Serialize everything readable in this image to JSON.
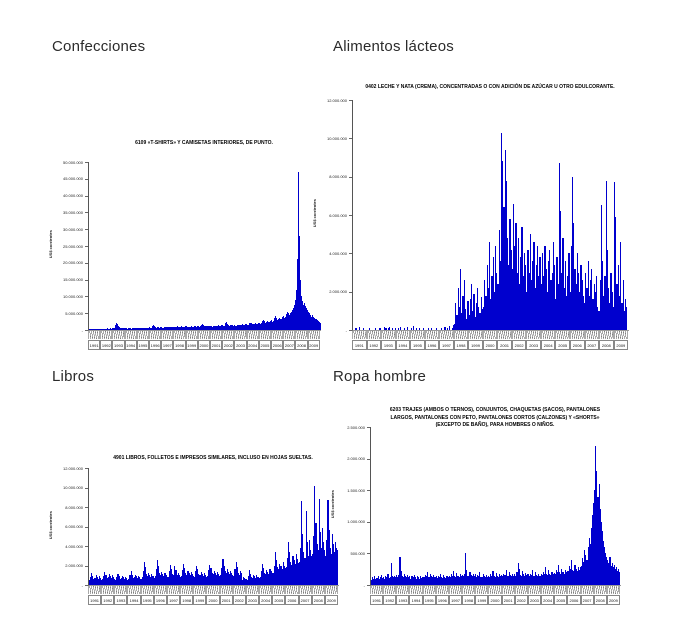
{
  "page": {
    "sections": [
      {
        "header": "Confecciones"
      },
      {
        "header": "Alimentos lácteos"
      },
      {
        "header": "Libros"
      },
      {
        "header": "Ropa hombre"
      }
    ]
  },
  "colors": {
    "bar": "#0000ce",
    "axis": "#888888",
    "header_text": "#2b2b2b"
  },
  "chart_data": [
    {
      "type": "bar",
      "section": "Confecciones",
      "title": "6109 «T-SHIRTS» Y CAMISETAS INTERIORES, DE PUNTO.",
      "ylabel": "US$ corrientes",
      "x_resolution": "monthly",
      "years": [
        "1991",
        "1992",
        "1993",
        "1994",
        "1995",
        "1996",
        "1997",
        "1998",
        "1999",
        "2000",
        "2001",
        "2002",
        "2003",
        "2004",
        "2005",
        "2006",
        "2007",
        "2008",
        "2009"
      ],
      "ytick_labels": [
        "50.000.000",
        "45.000.000",
        "40.000.000",
        "35.000.000",
        "30.000.000",
        "25.000.000",
        "20.000.000",
        "15.000.000",
        "10.000.000",
        "5.000.000",
        "-"
      ],
      "ylim_millions": [
        0,
        50
      ],
      "values_unit": "millions of current US$",
      "values_millions": [
        0.3,
        0.25,
        0.35,
        0.3,
        0.4,
        0.3,
        0.35,
        0.3,
        0.4,
        0.35,
        0.3,
        0.4,
        0.35,
        0.3,
        0.4,
        0.35,
        0.45,
        0.4,
        0.5,
        0.45,
        0.4,
        0.5,
        0.45,
        0.5,
        0.5,
        0.6,
        1.6,
        2.1,
        1.8,
        1.2,
        0.8,
        0.6,
        0.5,
        0.6,
        0.5,
        0.6,
        0.5,
        0.45,
        0.5,
        0.55,
        0.5,
        0.45,
        0.5,
        0.55,
        0.6,
        0.5,
        0.55,
        0.6,
        0.5,
        0.55,
        0.6,
        0.65,
        0.6,
        0.55,
        0.6,
        0.7,
        0.65,
        0.6,
        0.7,
        0.75,
        0.6,
        0.7,
        1.3,
        1.5,
        1.1,
        0.8,
        0.7,
        0.8,
        0.75,
        0.7,
        0.8,
        0.9,
        0.7,
        0.65,
        0.75,
        0.8,
        0.85,
        0.8,
        0.75,
        0.85,
        0.9,
        0.85,
        0.8,
        0.9,
        0.8,
        0.9,
        1,
        1.1,
        1,
        0.9,
        1,
        1.1,
        1,
        0.9,
        1,
        1.1,
        0.9,
        0.85,
        0.95,
        1,
        1.1,
        1,
        0.95,
        1.05,
        1.1,
        1,
        1.1,
        1.2,
        1,
        1.1,
        1.6,
        1.8,
        1.4,
        1.2,
        1.1,
        1.2,
        1.3,
        1.2,
        1.1,
        1.3,
        1.1,
        1,
        1.2,
        1.3,
        1.2,
        1.1,
        1.3,
        1.4,
        1.3,
        1.2,
        1.4,
        1.5,
        1.2,
        1.3,
        2,
        2.4,
        1.8,
        1.4,
        1.3,
        1.4,
        1.5,
        1.4,
        1.3,
        1.5,
        1.3,
        1.2,
        1.4,
        1.6,
        1.5,
        1.4,
        1.6,
        1.7,
        1.6,
        1.5,
        1.7,
        1.8,
        1.5,
        1.6,
        2.2,
        2,
        1.8,
        1.7,
        1.9,
        2,
        1.9,
        1.8,
        2,
        2.2,
        1.8,
        2,
        2.6,
        3,
        2.6,
        2.2,
        2.4,
        2.6,
        2.5,
        2.4,
        2.8,
        3,
        2.5,
        2.8,
        3.6,
        4.2,
        3.6,
        3,
        3.2,
        3.6,
        3.4,
        3.2,
        3.8,
        4.2,
        3.5,
        3.8,
        4.8,
        5.5,
        5,
        4.5,
        5,
        5.5,
        6,
        6.5,
        7.5,
        9,
        12,
        21,
        47,
        28,
        15,
        10,
        8.5,
        7.5,
        8,
        7,
        6.5,
        6,
        5.5,
        5,
        4.5,
        4,
        4.5,
        3.8,
        3.5,
        3.2,
        3,
        2.8,
        2.5,
        2.2
      ]
    },
    {
      "type": "bar",
      "section": "Alimentos lácteos",
      "title": "0402 LECHE Y NATA (CREMA), CONCENTRADAS O CON ADICIÓN DE AZÚCAR U OTRO EDULCORANTE.",
      "ylabel": "US$ corrientes",
      "x_resolution": "monthly",
      "years": [
        "1991",
        "1992",
        "1993",
        "1994",
        "1995",
        "1996",
        "1997",
        "1998",
        "1999",
        "2000",
        "2001",
        "2002",
        "2003",
        "2004",
        "2005",
        "2006",
        "2007",
        "2008",
        "2009"
      ],
      "ytick_labels": [
        "12.000.000",
        "10.000.000",
        "8.000.000",
        "6.000.000",
        "4.000.000",
        "2.000.000",
        "-"
      ],
      "ylim_millions": [
        0,
        12
      ],
      "values_unit": "millions of current US$",
      "values_millions": [
        0,
        0,
        0.1,
        0,
        0,
        0.15,
        0,
        0,
        0.1,
        0,
        0,
        0,
        0,
        0.1,
        0,
        0,
        0,
        0,
        0.1,
        0,
        0,
        0,
        0.1,
        0,
        0,
        0,
        0.15,
        0.1,
        0,
        0.1,
        0.15,
        0,
        0.1,
        0,
        0,
        0.1,
        0,
        0.1,
        0,
        0.15,
        0,
        0,
        0.1,
        0,
        0,
        0.15,
        0,
        0,
        0.1,
        0,
        0.2,
        0,
        0.1,
        0,
        0,
        0.1,
        0,
        0,
        0.1,
        0,
        0,
        0,
        0.1,
        0,
        0,
        0.1,
        0,
        0,
        0,
        0.1,
        0,
        0,
        0,
        0.1,
        0,
        0,
        0.15,
        0,
        0.1,
        0,
        0.2,
        0,
        0.1,
        0.25,
        0.3,
        1.4,
        0.8,
        2.2,
        1.2,
        3.2,
        0.9,
        1.8,
        2.6,
        1.1,
        0.6,
        1.5,
        0.8,
        1.6,
        2.4,
        1,
        1.9,
        0.7,
        1.4,
        2.2,
        1.2,
        0.9,
        1.7,
        1.1,
        1.2,
        2.6,
        1.8,
        3.4,
        2.2,
        4.6,
        1.6,
        2.8,
        3.8,
        2,
        4.4,
        3,
        2.4,
        5.2,
        3.6,
        10.3,
        8.8,
        6.4,
        9.4,
        7.8,
        4.8,
        3.4,
        5.8,
        4.2,
        3.2,
        6.6,
        4.4,
        5.6,
        3,
        4.8,
        2.4,
        3.8,
        5.4,
        2.8,
        4,
        3.4,
        2,
        4.2,
        3,
        5,
        2.6,
        3.6,
        4.6,
        2.2,
        3.4,
        4.4,
        2.8,
        3.8,
        2.4,
        4,
        2.8,
        4.4,
        3.2,
        2,
        3.6,
        4.2,
        2.6,
        3,
        4.6,
        3.4,
        1.6,
        3.8,
        2.4,
        8.7,
        6.2,
        3,
        4.8,
        2.2,
        3.6,
        1.8,
        2.8,
        4,
        2,
        4.4,
        8,
        5.6,
        3.2,
        2.4,
        4,
        3,
        2,
        3.4,
        2.6,
        1.8,
        1.4,
        3,
        2.2,
        3.6,
        1.8,
        2.6,
        3.2,
        1.6,
        2.4,
        2,
        2.8,
        1.2,
        1,
        2.6,
        6.5,
        3.6,
        1.8,
        2.8,
        7.8,
        4.2,
        2.2,
        1.4,
        3,
        2,
        1.2,
        7.7,
        5.9,
        2.4,
        3.4,
        1.8,
        4.6,
        1.4,
        2.6,
        1,
        1.6,
        1.2
      ]
    },
    {
      "type": "bar",
      "section": "Libros",
      "title": "4901 LIBROS, FOLLETOS E IMPRESOS SIMILARES, INCLUSO EN HOJAS SUELTAS.",
      "ylabel": "US$ corrientes",
      "x_resolution": "monthly",
      "years": [
        "1991",
        "1992",
        "1993",
        "1994",
        "1995",
        "1996",
        "1997",
        "1998",
        "1999",
        "2000",
        "2001",
        "2002",
        "2003",
        "2004",
        "2005",
        "2006",
        "2007",
        "2008",
        "2009"
      ],
      "ytick_labels": [
        "12.000.000",
        "10.000.000",
        "8.000.000",
        "6.000.000",
        "4.000.000",
        "2.000.000",
        "-"
      ],
      "ylim_millions": [
        0,
        12
      ],
      "values_unit": "millions of current US$",
      "values_millions": [
        0.5,
        0.8,
        1.2,
        0.9,
        0.6,
        0.7,
        1,
        0.8,
        0.6,
        0.9,
        0.7,
        0.5,
        0.6,
        0.9,
        1.3,
        1,
        0.7,
        0.8,
        1.1,
        0.9,
        0.7,
        1,
        0.8,
        0.6,
        0.5,
        0.8,
        1.1,
        0.9,
        0.6,
        0.7,
        0.9,
        0.8,
        0.6,
        0.8,
        0.7,
        0.5,
        0.6,
        1,
        1.4,
        1,
        0.7,
        0.8,
        1,
        0.9,
        0.7,
        0.9,
        0.8,
        0.6,
        0.8,
        1.4,
        2.4,
        1.8,
        1.1,
        0.9,
        1.2,
        1,
        0.8,
        1.1,
        0.9,
        0.7,
        0.9,
        1.6,
        2.6,
        1.9,
        1.2,
        1,
        1.3,
        1.1,
        0.9,
        1.2,
        1,
        0.8,
        0.8,
        1.4,
        2.1,
        1.6,
        1.1,
        1,
        1.9,
        1.5,
        1,
        1.2,
        1,
        0.8,
        0.9,
        1.5,
        2.2,
        1.7,
        1.2,
        1,
        1.4,
        1.2,
        1,
        1.3,
        1.1,
        0.9,
        0.8,
        1.4,
        2,
        1.6,
        1.1,
        1,
        1.3,
        1.1,
        0.9,
        1.2,
        1,
        0.8,
        0.9,
        1.5,
        2.1,
        1.7,
        1.2,
        1.1,
        1.4,
        1.2,
        1,
        1.3,
        1.1,
        0.9,
        1,
        1.7,
        2.7,
        2,
        1.4,
        1.2,
        1.6,
        1.3,
        1.1,
        1.4,
        1.2,
        1,
        0.9,
        1.6,
        2.4,
        1.8,
        1.2,
        1,
        1.4,
        1.2,
        0.5,
        0.8,
        0.7,
        0.6,
        0.5,
        0.9,
        1.5,
        1.1,
        0.8,
        0.7,
        1,
        0.9,
        0.7,
        1,
        0.8,
        0.7,
        0.8,
        1.4,
        2.2,
        1.7,
        1.2,
        1.1,
        1.5,
        1.3,
        1.1,
        1.6,
        1.4,
        1.2,
        1.2,
        2,
        3.4,
        2.6,
        1.8,
        1.6,
        2.2,
        1.9,
        1.6,
        2.4,
        2,
        1.7,
        1.8,
        2.8,
        4.4,
        3.4,
        2.4,
        2.1,
        3,
        2.6,
        2.2,
        3.2,
        2.7,
        2.3,
        2.4,
        3.8,
        8.6,
        5.2,
        3.4,
        2.8,
        7.6,
        4.4,
        3,
        4.6,
        3.6,
        3,
        3.2,
        5,
        10.2,
        6.4,
        4.2,
        3.6,
        8.8,
        5.4,
        3.8,
        5.8,
        4.4,
        3.6,
        3,
        4.6,
        8.7,
        5.6,
        3.8,
        3.2,
        5.2,
        4.2,
        3.4,
        4.4,
        3.8,
        3.6
      ]
    },
    {
      "type": "bar",
      "section": "Ropa hombre",
      "title": "6203 TRAJES (AMBOS O TERNOS), CONJUNTOS, CHAQUETAS (SACOS), PANTALONES LARGOS, PANTALONES CON PETO, PANTALONES CORTOS (CALZONES) Y «SHORTS» (EXCEPTO DE BAÑO), PARA HOMBRES O NIÑOS.",
      "ylabel": "US$ corrientes",
      "x_resolution": "monthly",
      "years": [
        "1991",
        "1992",
        "1993",
        "1994",
        "1995",
        "1996",
        "1997",
        "1998",
        "1999",
        "2000",
        "2001",
        "2002",
        "2003",
        "2004",
        "2005",
        "2006",
        "2007",
        "2008",
        "2009"
      ],
      "ytick_labels": [
        "2.500.000",
        "2.000.000",
        "1.500.000",
        "1.000.000",
        "500.000",
        "-"
      ],
      "ylim_millions": [
        0,
        2.5
      ],
      "values_unit": "millions of current US$",
      "values_millions": [
        0.08,
        0.12,
        0.1,
        0.15,
        0.09,
        0.11,
        0.14,
        0.1,
        0.12,
        0.16,
        0.11,
        0.13,
        0.1,
        0.14,
        0.12,
        0.18,
        0.11,
        0.13,
        0.35,
        0.15,
        0.12,
        0.14,
        0.12,
        0.16,
        0.12,
        0.16,
        0.45,
        0.22,
        0.14,
        0.12,
        0.18,
        0.14,
        0.12,
        0.16,
        0.13,
        0.15,
        0.1,
        0.14,
        0.12,
        0.16,
        0.12,
        0.1,
        0.15,
        0.12,
        0.1,
        0.14,
        0.11,
        0.13,
        0.12,
        0.16,
        0.14,
        0.2,
        0.13,
        0.12,
        0.17,
        0.14,
        0.12,
        0.16,
        0.13,
        0.15,
        0.11,
        0.15,
        0.13,
        0.18,
        0.12,
        0.11,
        0.16,
        0.13,
        0.11,
        0.15,
        0.12,
        0.14,
        0.13,
        0.17,
        0.15,
        0.22,
        0.14,
        0.13,
        0.19,
        0.15,
        0.13,
        0.17,
        0.14,
        0.16,
        0.14,
        0.18,
        0.5,
        0.24,
        0.15,
        0.14,
        0.2,
        0.16,
        0.14,
        0.18,
        0.15,
        0.17,
        0.12,
        0.16,
        0.14,
        0.2,
        0.13,
        0.12,
        0.18,
        0.14,
        0.12,
        0.16,
        0.13,
        0.15,
        0.13,
        0.17,
        0.15,
        0.22,
        0.14,
        0.13,
        0.19,
        0.15,
        0.13,
        0.17,
        0.14,
        0.16,
        0.14,
        0.18,
        0.16,
        0.24,
        0.15,
        0.14,
        0.2,
        0.16,
        0.14,
        0.18,
        0.15,
        0.17,
        0.15,
        0.2,
        0.35,
        0.26,
        0.16,
        0.15,
        0.22,
        0.17,
        0.15,
        0.19,
        0.16,
        0.18,
        0.14,
        0.18,
        0.16,
        0.24,
        0.15,
        0.14,
        0.2,
        0.16,
        0.14,
        0.18,
        0.15,
        0.17,
        0.16,
        0.21,
        0.18,
        0.28,
        0.17,
        0.16,
        0.23,
        0.18,
        0.16,
        0.2,
        0.17,
        0.19,
        0.18,
        0.24,
        0.21,
        0.32,
        0.2,
        0.18,
        0.26,
        0.21,
        0.18,
        0.23,
        0.2,
        0.22,
        0.22,
        0.3,
        0.26,
        0.4,
        0.24,
        0.22,
        0.32,
        0.26,
        0.22,
        0.28,
        0.24,
        0.28,
        0.3,
        0.42,
        0.36,
        0.55,
        0.48,
        0.4,
        0.6,
        0.75,
        0.65,
        0.9,
        1.1,
        1.3,
        1.5,
        2.2,
        1.8,
        1.4,
        1.6,
        1.2,
        1,
        0.85,
        0.7,
        0.6,
        0.5,
        0.45,
        0.4,
        0.35,
        0.45,
        0.3,
        0.35,
        0.28,
        0.32,
        0.25,
        0.28,
        0.22,
        0.25,
        0.2
      ]
    }
  ]
}
